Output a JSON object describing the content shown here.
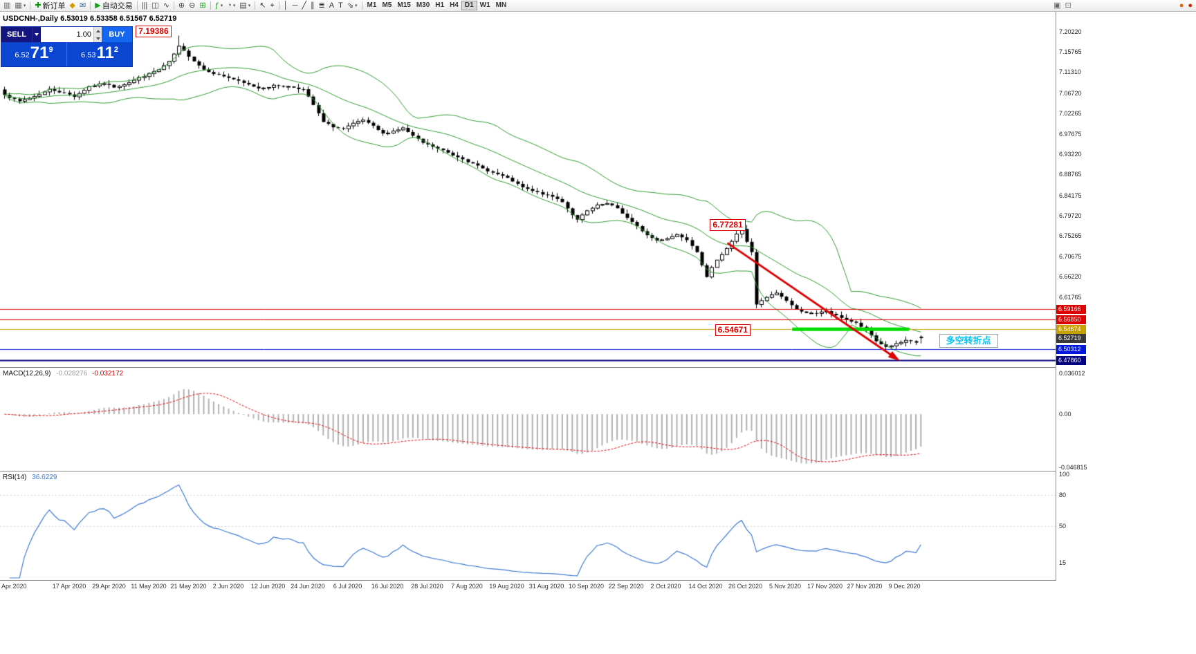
{
  "toolbar": {
    "caret_glyph": "▾",
    "active_timeframe": "D1",
    "timeframes": [
      "M1",
      "M5",
      "M15",
      "M30",
      "H1",
      "H4",
      "D1",
      "W1",
      "MN"
    ],
    "items": [
      {
        "t": "b",
        "name": "new-chart-button",
        "icon": "chart-window-icon",
        "glyph": "▥",
        "color": "#666"
      },
      {
        "t": "b",
        "name": "profiles-button",
        "icon": "profiles-icon",
        "glyph": "▦",
        "color": "#666",
        "caret": true
      },
      {
        "t": "s"
      },
      {
        "t": "b",
        "name": "new-order-button",
        "icon": "new-order-icon",
        "glyph": "✚",
        "color": "#0a9a0a",
        "label": "新订单"
      },
      {
        "t": "b",
        "name": "metaeditor-button",
        "icon": "metaeditor-icon",
        "glyph": "◆",
        "color": "#d79b00"
      },
      {
        "t": "b",
        "name": "market-button",
        "icon": "mail-icon",
        "glyph": "✉",
        "color": "#3a6ea5"
      },
      {
        "t": "s"
      },
      {
        "t": "b",
        "name": "autotrading-button",
        "icon": "autotrading-play-icon",
        "glyph": "▶",
        "color": "#17a317",
        "label": "自动交易"
      },
      {
        "t": "s"
      },
      {
        "t": "b",
        "name": "chart-bars-button",
        "icon": "bar-chart-icon",
        "glyph": "|||",
        "color": "#444"
      },
      {
        "t": "b",
        "name": "chart-candles-button",
        "icon": "candlestick-icon",
        "glyph": "◫",
        "color": "#444"
      },
      {
        "t": "b",
        "name": "chart-line-button",
        "icon": "line-chart-icon",
        "glyph": "∿",
        "color": "#444"
      },
      {
        "t": "s"
      },
      {
        "t": "b",
        "name": "zoom-in-button",
        "icon": "zoom-in-icon",
        "glyph": "⊕",
        "color": "#444"
      },
      {
        "t": "b",
        "name": "zoom-out-button",
        "icon": "zoom-out-icon",
        "glyph": "⊖",
        "color": "#444"
      },
      {
        "t": "b",
        "name": "tile-windows-button",
        "icon": "tile-windows-icon",
        "glyph": "⊞",
        "color": "#17a317"
      },
      {
        "t": "s"
      },
      {
        "t": "b",
        "name": "indicators-button",
        "icon": "indicators-icon",
        "glyph": "ƒ",
        "color": "#0a9a0a",
        "caret": true
      },
      {
        "t": "b",
        "name": "periods-button",
        "icon": "clock-icon",
        "glyph": "◔",
        "color": "#444",
        "caret": true
      },
      {
        "t": "b",
        "name": "templates-button",
        "icon": "templates-icon",
        "glyph": "▤",
        "color": "#444",
        "caret": true
      },
      {
        "t": "s"
      },
      {
        "t": "b",
        "name": "cursor-button",
        "icon": "cursor-arrow-icon",
        "glyph": "↖",
        "color": "#333"
      },
      {
        "t": "b",
        "name": "crosshair-button",
        "icon": "crosshair-icon",
        "glyph": "⌖",
        "color": "#333"
      },
      {
        "t": "s"
      },
      {
        "t": "b",
        "name": "vertical-line-button",
        "icon": "vertical-line-icon",
        "glyph": "│",
        "color": "#333"
      },
      {
        "t": "b",
        "name": "horizontal-line-button",
        "icon": "horizontal-line-icon",
        "glyph": "─",
        "color": "#333"
      },
      {
        "t": "b",
        "name": "trendline-button",
        "icon": "trendline-icon",
        "glyph": "╱",
        "color": "#333"
      },
      {
        "t": "b",
        "name": "channel-button",
        "icon": "channel-icon",
        "glyph": "∥",
        "color": "#333"
      },
      {
        "t": "b",
        "name": "fibonacci-button",
        "icon": "fibonacci-icon",
        "glyph": "≣",
        "color": "#333"
      },
      {
        "t": "b",
        "name": "text-button",
        "icon": "text-icon",
        "glyph": "A",
        "color": "#333"
      },
      {
        "t": "b",
        "name": "label-button",
        "icon": "label-icon",
        "glyph": "T",
        "color": "#333"
      },
      {
        "t": "b",
        "name": "arrows-button",
        "icon": "arrow-tool-icon",
        "glyph": "⇘",
        "color": "#333",
        "caret": true
      },
      {
        "t": "s"
      },
      {
        "t": "tf"
      },
      {
        "t": "f"
      },
      {
        "t": "b",
        "name": "window-list-button",
        "icon": "windows-icon",
        "glyph": "▣",
        "color": "#666"
      },
      {
        "t": "b",
        "name": "docking-button",
        "icon": "dock-icon",
        "glyph": "⊡",
        "color": "#666"
      },
      {
        "t": "g",
        "w": 150
      },
      {
        "t": "b",
        "name": "alert-button",
        "icon": "alert-dot-icon",
        "glyph": "●",
        "color": "#e86000"
      },
      {
        "t": "b",
        "name": "notification-button",
        "icon": "notification-dot-icon",
        "glyph": "●",
        "color": "#cc2200"
      }
    ]
  },
  "chart": {
    "title": "USDCNH-,Daily",
    "ohlc_text": "6.53019 6.53358 6.51567 6.52719",
    "open": "6.53019",
    "high": "6.53358",
    "low": "6.51567",
    "close": "6.52719"
  },
  "trade_panel": {
    "sell_label": "SELL",
    "buy_label": "BUY",
    "volume": "1.00",
    "sell_price_prefix": "6.52",
    "sell_price_big": "71",
    "sell_price_sup": "9",
    "buy_price_prefix": "6.53",
    "buy_price_big": "11",
    "buy_price_sup": "2"
  },
  "macd": {
    "label": "MACD(12,26,9)",
    "main_value": "-0.028276",
    "signal_value": "-0.032172",
    "scale": [
      "0.036012",
      "0.00",
      "-0.046815"
    ]
  },
  "rsi": {
    "label": "RSI(14)",
    "value": "36.6229",
    "scale": [
      "100",
      "80",
      "50",
      "15"
    ],
    "levels": [
      80,
      50
    ]
  },
  "price_scale_ticks": [
    "7.20220",
    "7.15765",
    "7.11310",
    "7.06720",
    "7.02265",
    "6.97675",
    "6.93220",
    "6.88765",
    "6.84175",
    "6.79720",
    "6.75265",
    "6.70675",
    "6.66220",
    "6.61765",
    "6.57175"
  ],
  "price_labels": [
    {
      "text": "6.59166",
      "bg": "#dd0000"
    },
    {
      "text": "6.56850",
      "bg": "#dd0000"
    },
    {
      "text": "6.54674",
      "bg": "#c8a000"
    },
    {
      "text": "6.52719",
      "bg": "#3a3a3a"
    },
    {
      "text": "6.50312",
      "bg": "#0018dd"
    },
    {
      "text": "6.47860",
      "bg": "#000080"
    }
  ],
  "dates": [
    "Apr 2020",
    "17 Apr 2020",
    "29 Apr 2020",
    "11 May 2020",
    "21 May 2020",
    "2 Jun 2020",
    "12 Jun 2020",
    "24 Jun 2020",
    "6 Jul 2020",
    "16 Jul 2020",
    "28 Jul 2020",
    "7 Aug 2020",
    "19 Aug 2020",
    "31 Aug 2020",
    "10 Sep 2020",
    "22 Sep 2020",
    "2 Oct 2020",
    "14 Oct 2020",
    "26 Oct 2020",
    "5 Nov 2020",
    "17 Nov 2020",
    "27 Nov 2020",
    "9 Dec 2020"
  ],
  "chart_data": {
    "type": "candlestick",
    "symbol": "USDCNH-",
    "period": "Daily",
    "candle_count": 185,
    "seed": 7,
    "noise_amplitude": 0.004,
    "wick_amplitude": 0.009,
    "y_axis": {
      "max": 7.21743,
      "min": 6.46791
    },
    "macd_axis": {
      "max": 0.036012,
      "min": -0.046815
    },
    "indicators": {
      "bollinger_period": 20,
      "bollinger_dev": 2,
      "macd": [
        12,
        26,
        9
      ],
      "rsi_period": 14
    },
    "price_anchors": [
      [
        0,
        7.065
      ],
      [
        3,
        7.048
      ],
      [
        6,
        7.06
      ],
      [
        9,
        7.075
      ],
      [
        12,
        7.068
      ],
      [
        14,
        7.06
      ],
      [
        17,
        7.082
      ],
      [
        20,
        7.088
      ],
      [
        22,
        7.08
      ],
      [
        25,
        7.092
      ],
      [
        28,
        7.105
      ],
      [
        31,
        7.118
      ],
      [
        33,
        7.135
      ],
      [
        35,
        7.168
      ],
      [
        37,
        7.148
      ],
      [
        40,
        7.12
      ],
      [
        43,
        7.108
      ],
      [
        46,
        7.098
      ],
      [
        48,
        7.088
      ],
      [
        51,
        7.078
      ],
      [
        54,
        7.084
      ],
      [
        57,
        7.082
      ],
      [
        60,
        7.076
      ],
      [
        62,
        7.04
      ],
      [
        64,
        7.002
      ],
      [
        66,
        6.992
      ],
      [
        68,
        6.988
      ],
      [
        70,
        6.998
      ],
      [
        72,
        7.006
      ],
      [
        74,
        6.992
      ],
      [
        76,
        6.976
      ],
      [
        78,
        6.984
      ],
      [
        80,
        6.99
      ],
      [
        82,
        6.972
      ],
      [
        84,
        6.956
      ],
      [
        86,
        6.948
      ],
      [
        88,
        6.94
      ],
      [
        90,
        6.93
      ],
      [
        92,
        6.924
      ],
      [
        94,
        6.912
      ],
      [
        96,
        6.9
      ],
      [
        98,
        6.892
      ],
      [
        100,
        6.884
      ],
      [
        102,
        6.872
      ],
      [
        104,
        6.858
      ],
      [
        106,
        6.85
      ],
      [
        108,
        6.844
      ],
      [
        110,
        6.838
      ],
      [
        112,
        6.828
      ],
      [
        114,
        6.8
      ],
      [
        115,
        6.788
      ],
      [
        117,
        6.806
      ],
      [
        119,
        6.818
      ],
      [
        121,
        6.822
      ],
      [
        123,
        6.812
      ],
      [
        125,
        6.792
      ],
      [
        127,
        6.772
      ],
      [
        129,
        6.754
      ],
      [
        131,
        6.742
      ],
      [
        133,
        6.748
      ],
      [
        135,
        6.756
      ],
      [
        137,
        6.746
      ],
      [
        139,
        6.72
      ],
      [
        141,
        6.662
      ],
      [
        143,
        6.7
      ],
      [
        145,
        6.726
      ],
      [
        147,
        6.756
      ],
      [
        148,
        6.768
      ],
      [
        149,
        6.74
      ],
      [
        150,
        6.716
      ],
      [
        151,
        6.6
      ],
      [
        153,
        6.616
      ],
      [
        155,
        6.626
      ],
      [
        157,
        6.61
      ],
      [
        159,
        6.59
      ],
      [
        161,
        6.584
      ],
      [
        163,
        6.58
      ],
      [
        165,
        6.586
      ],
      [
        167,
        6.576
      ],
      [
        169,
        6.568
      ],
      [
        171,
        6.56
      ],
      [
        173,
        6.544
      ],
      [
        175,
        6.52
      ],
      [
        177,
        6.508
      ],
      [
        179,
        6.514
      ],
      [
        181,
        6.52
      ],
      [
        183,
        6.516
      ],
      [
        184,
        6.527
      ]
    ],
    "forced_highs": [
      [
        35,
        7.19386
      ],
      [
        148,
        6.77281
      ]
    ],
    "last_candle": {
      "o": 6.53019,
      "h": 6.53358,
      "l": 6.51567,
      "c": 6.52719
    },
    "h_lines": [
      {
        "price": 6.59166,
        "color": "#dd0000",
        "w": 1
      },
      {
        "price": 6.5685,
        "color": "#dd0000",
        "w": 1
      },
      {
        "price": 6.54674,
        "color": "#c8a000",
        "w": 1
      },
      {
        "price": 6.50312,
        "color": "#0018dd",
        "w": 1
      },
      {
        "price": 6.4786,
        "color": "#000080",
        "w": 2
      }
    ],
    "support_zone": {
      "i1": 158.5,
      "i2": 182,
      "price": 6.5467,
      "color": "#00dd00",
      "w": 5
    },
    "trend_arrow": {
      "i1": 145.5,
      "p1": 6.737,
      "i2": 179,
      "p2": 6.4855,
      "color": "#dd0000",
      "w": 3
    },
    "annotations": [
      {
        "name": "price-note-high",
        "text": "7.19386",
        "i": 26.7,
        "price": 7.2025,
        "style": "red"
      },
      {
        "name": "price-note-swing-high",
        "text": "6.77281",
        "i": 142,
        "price": 6.776,
        "style": "red"
      },
      {
        "name": "price-note-support",
        "text": "6.54671",
        "i": 143,
        "price": 6.5441,
        "style": "red"
      },
      {
        "name": "turning-point-note",
        "text": "多空转折点",
        "i": 188,
        "price": 6.5214,
        "style": "cyan"
      }
    ]
  }
}
